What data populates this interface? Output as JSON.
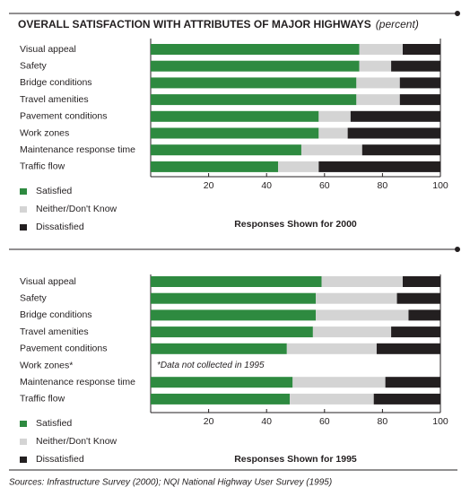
{
  "chart_data": [
    {
      "type": "stacked-bar",
      "orientation": "horizontal",
      "title": "OVERALL SATISFACTION WITH ATTRIBUTES OF MAJOR HIGHWAYS",
      "units": "(percent)",
      "categories": [
        "Visual appeal",
        "Safety",
        "Bridge conditions",
        "Travel amenities",
        "Pavement conditions",
        "Work zones",
        "Maintenance response time",
        "Traffic flow"
      ],
      "series": [
        {
          "name": "Satisfied",
          "color": "#2e8a40",
          "values": [
            72,
            72,
            71,
            71,
            58,
            58,
            52,
            44
          ]
        },
        {
          "name": "Neither/Don't Know",
          "color": "#d4d4d4",
          "values": [
            15,
            11,
            15,
            15,
            11,
            10,
            21,
            14
          ]
        },
        {
          "name": "Dissatisfied",
          "color": "#231f20",
          "values": [
            13,
            17,
            14,
            14,
            31,
            32,
            27,
            42
          ]
        }
      ],
      "xlabel": "Responses Shown for 2000",
      "xlim": [
        0,
        100
      ],
      "xticks": [
        20,
        40,
        60,
        80,
        100
      ]
    },
    {
      "type": "stacked-bar",
      "orientation": "horizontal",
      "categories": [
        "Visual appeal",
        "Safety",
        "Bridge conditions",
        "Travel amenities",
        "Pavement conditions",
        "Work zones*",
        "Maintenance response time",
        "Traffic flow"
      ],
      "series": [
        {
          "name": "Satisfied",
          "color": "#2e8a40",
          "values": [
            59,
            57,
            57,
            56,
            47,
            null,
            49,
            48
          ]
        },
        {
          "name": "Neither/Don't Know",
          "color": "#d4d4d4",
          "values": [
            28,
            28,
            32,
            27,
            31,
            null,
            32,
            29
          ]
        },
        {
          "name": "Dissatisfied",
          "color": "#231f20",
          "values": [
            13,
            15,
            11,
            17,
            22,
            null,
            19,
            23
          ]
        }
      ],
      "annotation": "*Data not collected in 1995",
      "xlabel": "Responses Shown for 1995",
      "xlim": [
        0,
        100
      ],
      "xticks": [
        20,
        40,
        60,
        80,
        100
      ]
    }
  ],
  "sources": "Sources: Infrastructure Survey (2000); NQI National Highway User Survey (1995)"
}
